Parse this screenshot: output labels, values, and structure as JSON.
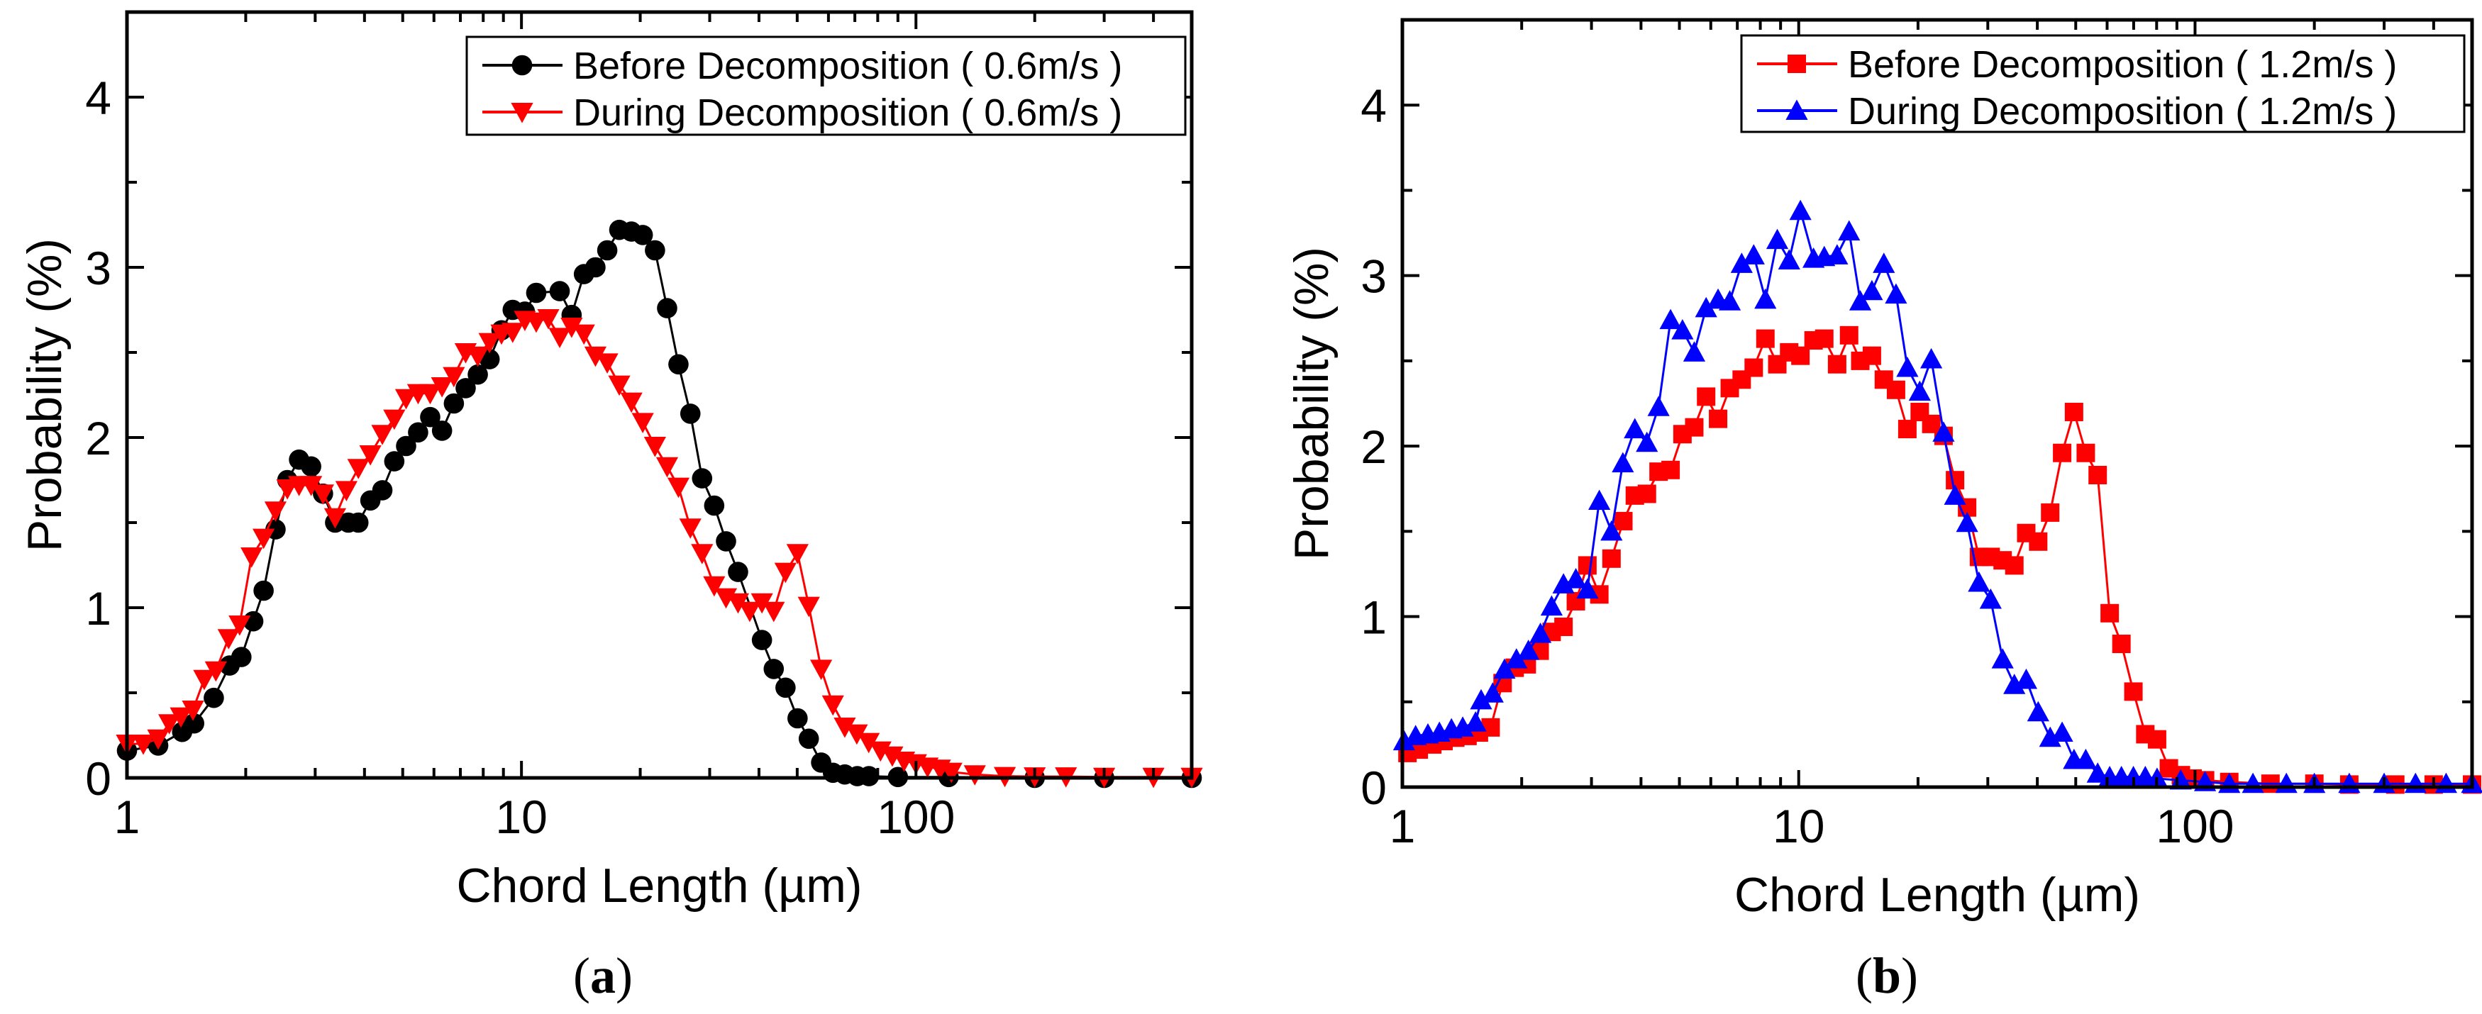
{
  "chart_data": [
    {
      "type": "line",
      "panel_caption_open": "(",
      "panel_letter": "a",
      "panel_caption_close": ")",
      "xlabel": "Chord Length (µm)",
      "ylabel": "Probability (%)",
      "xscale": "log",
      "xlim": [
        1,
        500
      ],
      "ylim": [
        0,
        4.5
      ],
      "xticks": [
        1,
        10,
        100
      ],
      "xtick_labels": [
        "1",
        "10",
        "100"
      ],
      "yticks": [
        0,
        1,
        2,
        3,
        4
      ],
      "ytick_labels": [
        "0",
        "1",
        "2",
        "3",
        "4"
      ],
      "legend_position": "top-right",
      "series": [
        {
          "name": "Before Decomposition ( 0.6m/s )",
          "color": "#000000",
          "marker": "circle",
          "x": [
            1,
            1.2,
            1.38,
            1.48,
            1.66,
            1.82,
            1.95,
            2.09,
            2.22,
            2.38,
            2.55,
            2.73,
            2.93,
            3.14,
            3.37,
            3.64,
            3.86,
            4.14,
            4.44,
            4.76,
            5.1,
            5.47,
            5.87,
            6.29,
            6.74,
            7.22,
            7.75,
            8.3,
            8.9,
            9.5,
            10.2,
            10.9,
            12.5,
            13.4,
            14.4,
            15.4,
            16.5,
            17.7,
            19.0,
            20.3,
            21.8,
            23.4,
            25.0,
            26.8,
            28.7,
            30.8,
            33.0,
            35.4,
            40.7,
            43.6,
            46.7,
            50.1,
            53.5,
            57.5,
            61.6,
            66,
            71,
            76,
            90,
            121,
            200,
            300,
            500
          ],
          "y": [
            0.16,
            0.19,
            0.27,
            0.32,
            0.47,
            0.66,
            0.71,
            0.92,
            1.1,
            1.46,
            1.75,
            1.87,
            1.83,
            1.67,
            1.5,
            1.5,
            1.5,
            1.63,
            1.69,
            1.86,
            1.95,
            2.03,
            2.12,
            2.04,
            2.2,
            2.29,
            2.37,
            2.46,
            2.63,
            2.75,
            2.74,
            2.85,
            2.86,
            2.72,
            2.96,
            3.0,
            3.1,
            3.22,
            3.21,
            3.19,
            3.1,
            2.76,
            2.43,
            2.14,
            1.76,
            1.6,
            1.39,
            1.21,
            0.81,
            0.64,
            0.53,
            0.35,
            0.23,
            0.09,
            0.03,
            0.02,
            0.01,
            0.01,
            0.005,
            0.005,
            0.0,
            0.0,
            0.0
          ]
        },
        {
          "name": "During Decomposition ( 0.6m/s )",
          "color": "#ff0000",
          "marker": "triangle-down",
          "x": [
            1,
            1.1,
            1.2,
            1.28,
            1.37,
            1.47,
            1.57,
            1.68,
            1.81,
            1.93,
            2.07,
            2.22,
            2.38,
            2.55,
            2.73,
            2.93,
            3.14,
            3.37,
            3.6,
            3.86,
            4.14,
            4.44,
            4.76,
            5.1,
            5.47,
            5.87,
            6.29,
            6.74,
            7.22,
            7.75,
            8.3,
            8.9,
            9.5,
            10.2,
            10.9,
            11.7,
            12.5,
            13.4,
            14.4,
            15.4,
            16.5,
            17.7,
            19.0,
            20.3,
            21.8,
            23.4,
            25.0,
            26.8,
            28.7,
            30.8,
            33.0,
            35.4,
            37.9,
            40.7,
            43.6,
            46.7,
            50.1,
            53.5,
            57.5,
            61.6,
            66,
            70.8,
            75.9,
            81.3,
            87.1,
            93.3,
            100,
            107,
            115,
            123,
            141,
            168,
            200,
            240,
            300,
            400,
            500
          ],
          "y": [
            0.2,
            0.2,
            0.23,
            0.32,
            0.36,
            0.4,
            0.58,
            0.63,
            0.82,
            0.9,
            1.3,
            1.41,
            1.57,
            1.7,
            1.72,
            1.72,
            1.67,
            1.53,
            1.69,
            1.82,
            1.9,
            2.02,
            2.11,
            2.23,
            2.26,
            2.26,
            2.3,
            2.36,
            2.5,
            2.48,
            2.56,
            2.61,
            2.62,
            2.69,
            2.68,
            2.7,
            2.59,
            2.65,
            2.61,
            2.48,
            2.44,
            2.31,
            2.21,
            2.09,
            1.95,
            1.83,
            1.71,
            1.47,
            1.32,
            1.13,
            1.06,
            1.03,
            0.98,
            1.03,
            0.98,
            1.21,
            1.32,
            1.01,
            0.64,
            0.43,
            0.3,
            0.26,
            0.21,
            0.16,
            0.13,
            0.1,
            0.085,
            0.065,
            0.053,
            0.035,
            0.02,
            0.01,
            0.008,
            0.008,
            0.005,
            0.005,
            0.005
          ]
        }
      ]
    },
    {
      "type": "line",
      "panel_caption_open": "(",
      "panel_letter": "b",
      "panel_caption_close": ")",
      "xlabel": "Chord Length (µm)",
      "ylabel": "Probability (%)",
      "xscale": "log",
      "xlim": [
        1,
        500
      ],
      "ylim": [
        0,
        4.5
      ],
      "xticks": [
        1,
        10,
        100
      ],
      "xtick_labels": [
        "1",
        "10",
        "100"
      ],
      "yticks": [
        0,
        1,
        2,
        3,
        4
      ],
      "ytick_labels": [
        "0",
        "1",
        "2",
        "3",
        "4"
      ],
      "legend_position": "top-right",
      "series": [
        {
          "name": "Before Decomposition ( 1.2m/s )",
          "color": "#ff0000",
          "marker": "square",
          "x": [
            1.03,
            1.1,
            1.19,
            1.27,
            1.36,
            1.46,
            1.56,
            1.67,
            1.79,
            1.92,
            2.06,
            2.22,
            2.38,
            2.55,
            2.74,
            2.93,
            3.14,
            3.37,
            3.61,
            3.86,
            4.14,
            4.43,
            4.75,
            5.09,
            5.45,
            5.84,
            6.26,
            6.7,
            7.18,
            7.7,
            8.24,
            8.83,
            9.46,
            10.1,
            10.9,
            11.6,
            12.5,
            13.4,
            14.3,
            15.3,
            16.4,
            17.6,
            18.8,
            20.2,
            21.6,
            23.2,
            24.8,
            26.6,
            28.5,
            30.5,
            32.7,
            35.0,
            37.5,
            40.2,
            43.1,
            46.2,
            49.5,
            53.0,
            56.8,
            60.9,
            65.2,
            69.9,
            74.9,
            80.2,
            85.9,
            92.1,
            98.6,
            106,
            122,
            155,
            200,
            245,
            320,
            400,
            500
          ],
          "y": [
            0.2,
            0.22,
            0.25,
            0.27,
            0.29,
            0.3,
            0.32,
            0.35,
            0.61,
            0.7,
            0.72,
            0.8,
            0.91,
            0.94,
            1.09,
            1.3,
            1.13,
            1.34,
            1.56,
            1.71,
            1.72,
            1.85,
            1.86,
            2.07,
            2.11,
            2.29,
            2.16,
            2.34,
            2.39,
            2.46,
            2.63,
            2.48,
            2.55,
            2.53,
            2.62,
            2.63,
            2.48,
            2.65,
            2.5,
            2.53,
            2.39,
            2.33,
            2.1,
            2.2,
            2.13,
            2.06,
            1.8,
            1.64,
            1.35,
            1.35,
            1.33,
            1.3,
            1.49,
            1.44,
            1.61,
            1.96,
            2.2,
            1.96,
            1.83,
            1.02,
            0.84,
            0.56,
            0.31,
            0.28,
            0.11,
            0.07,
            0.05,
            0.04,
            0.03,
            0.02,
            0.02,
            0.015,
            0.015,
            0.015,
            0.015
          ]
        },
        {
          "name": "During Decomposition ( 1.2m/s )",
          "color": "#0000ff",
          "marker": "triangle-up",
          "x": [
            1.01,
            1.08,
            1.16,
            1.24,
            1.33,
            1.42,
            1.53,
            1.58,
            1.69,
            1.81,
            1.94,
            2.08,
            2.23,
            2.38,
            2.55,
            2.74,
            2.93,
            3.14,
            3.37,
            3.6,
            3.86,
            4.14,
            4.43,
            4.75,
            5.09,
            5.45,
            5.84,
            6.26,
            6.7,
            7.18,
            7.7,
            8.24,
            8.83,
            9.46,
            10.1,
            10.9,
            11.6,
            12.5,
            13.4,
            14.3,
            15.3,
            16.4,
            17.6,
            18.8,
            20.2,
            21.6,
            23.2,
            24.8,
            26.6,
            28.5,
            30.5,
            32.7,
            35.0,
            37.5,
            40.2,
            43.1,
            46.2,
            49.5,
            53.0,
            56.8,
            60.9,
            65.2,
            69.9,
            74.9,
            80.2,
            92,
            106,
            122,
            140,
            170,
            200,
            245,
            300,
            360,
            430,
            500
          ],
          "y": [
            0.27,
            0.3,
            0.31,
            0.32,
            0.34,
            0.35,
            0.38,
            0.51,
            0.55,
            0.69,
            0.75,
            0.8,
            0.9,
            1.06,
            1.19,
            1.22,
            1.16,
            1.68,
            1.5,
            1.9,
            2.1,
            2.02,
            2.23,
            2.74,
            2.68,
            2.55,
            2.81,
            2.86,
            2.85,
            3.07,
            3.12,
            2.86,
            3.21,
            3.09,
            3.38,
            3.1,
            3.11,
            3.12,
            3.26,
            2.85,
            2.91,
            3.07,
            2.89,
            2.46,
            2.32,
            2.51,
            2.08,
            1.71,
            1.55,
            1.2,
            1.1,
            0.75,
            0.6,
            0.63,
            0.44,
            0.29,
            0.32,
            0.16,
            0.16,
            0.08,
            0.06,
            0.06,
            0.06,
            0.06,
            0.05,
            0.04,
            0.03,
            0.02,
            0.02,
            0.02,
            0.02,
            0.02,
            0.02,
            0.02,
            0.02,
            0.02
          ]
        }
      ]
    }
  ]
}
